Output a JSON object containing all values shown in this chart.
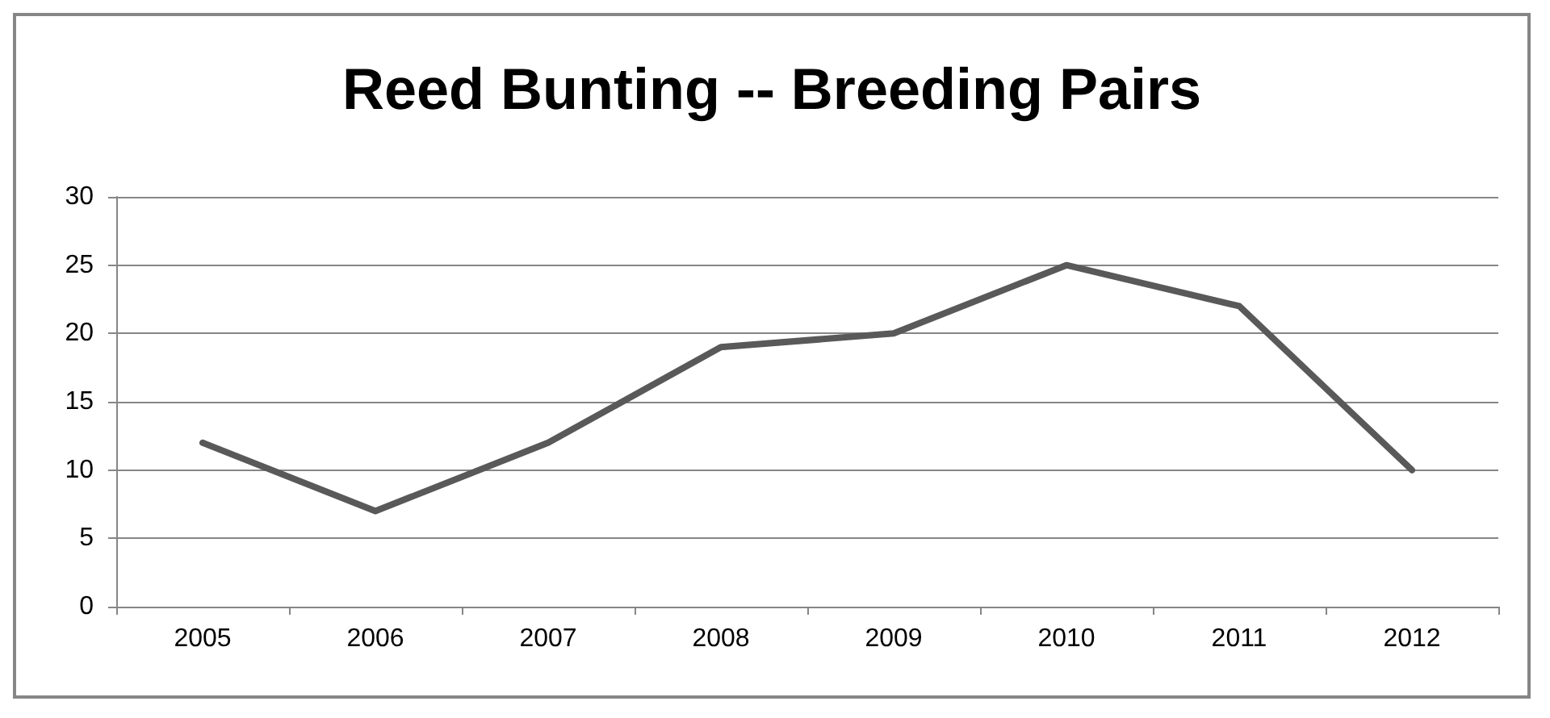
{
  "chart_data": {
    "type": "line",
    "title": "Reed Bunting -- Breeding Pairs",
    "categories": [
      "2005",
      "2006",
      "2007",
      "2008",
      "2009",
      "2010",
      "2011",
      "2012"
    ],
    "series": [
      {
        "color": "#595959",
        "values": [
          12,
          7,
          12,
          19,
          20,
          25,
          22,
          10
        ]
      }
    ],
    "ylim": [
      0,
      30
    ],
    "yticks": [
      0,
      5,
      10,
      15,
      20,
      25,
      30
    ],
    "grid": "y",
    "marker": "none",
    "line_style": "solid"
  }
}
